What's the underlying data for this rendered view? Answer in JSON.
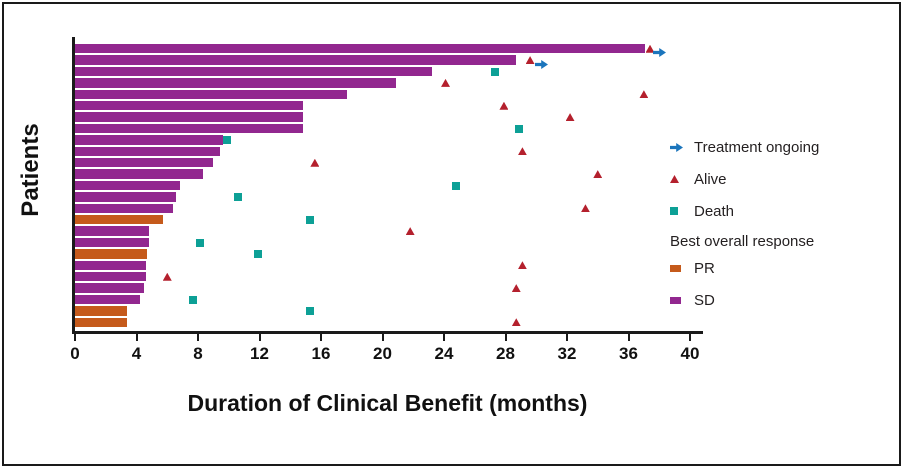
{
  "colors": {
    "sd": "#92278F",
    "pr": "#C55A1B",
    "death": "#0DA096",
    "alive": "#B4202D",
    "ongoing": "#1B75BC",
    "axis": "#1A1A1A",
    "text": "#231F20"
  },
  "chart_data": {
    "type": "bar",
    "variant": "swimmer-plot",
    "orientation": "horizontal",
    "title": "",
    "xlabel": "Duration of Clinical Benefit (months)",
    "ylabel": "Patients",
    "xlim": [
      0,
      40
    ],
    "xticks": [
      0,
      4,
      8,
      12,
      16,
      20,
      24,
      28,
      32,
      36,
      40
    ],
    "grid": false,
    "legend": {
      "position": "right",
      "items": [
        {
          "key": "ongoing",
          "label": "Treatment ongoing",
          "marker": "arrow-right",
          "color": "#1B75BC"
        },
        {
          "key": "alive",
          "label": "Alive",
          "marker": "triangle",
          "color": "#B4202D"
        },
        {
          "key": "death",
          "label": "Death",
          "marker": "square",
          "color": "#0DA096"
        }
      ],
      "response_header": "Best overall response",
      "response_items": [
        {
          "key": "PR",
          "label": "PR",
          "color": "#C55A1B"
        },
        {
          "key": "SD",
          "label": "SD",
          "color": "#92278F"
        }
      ]
    },
    "patients": [
      {
        "response": "SD",
        "duration": 37.1,
        "events": [
          {
            "type": "alive",
            "time": 37.4
          },
          {
            "type": "ongoing",
            "time": 38.0
          }
        ]
      },
      {
        "response": "SD",
        "duration": 28.7,
        "events": [
          {
            "type": "alive",
            "time": 29.6
          },
          {
            "type": "ongoing",
            "time": 30.3
          }
        ]
      },
      {
        "response": "SD",
        "duration": 23.2,
        "events": [
          {
            "type": "death",
            "time": 27.3
          }
        ]
      },
      {
        "response": "SD",
        "duration": 20.9,
        "events": [
          {
            "type": "alive",
            "time": 24.1
          }
        ]
      },
      {
        "response": "SD",
        "duration": 17.7,
        "events": [
          {
            "type": "alive",
            "time": 37.0
          }
        ]
      },
      {
        "response": "SD",
        "duration": 14.8,
        "events": [
          {
            "type": "alive",
            "time": 27.9
          }
        ]
      },
      {
        "response": "SD",
        "duration": 14.8,
        "events": [
          {
            "type": "alive",
            "time": 32.2
          }
        ]
      },
      {
        "response": "SD",
        "duration": 14.8,
        "events": [
          {
            "type": "death",
            "time": 28.9
          }
        ]
      },
      {
        "response": "SD",
        "duration": 9.6,
        "events": [
          {
            "type": "death",
            "time": 9.9
          }
        ]
      },
      {
        "response": "SD",
        "duration": 9.4,
        "events": [
          {
            "type": "alive",
            "time": 29.1
          }
        ]
      },
      {
        "response": "SD",
        "duration": 9.0,
        "events": [
          {
            "type": "alive",
            "time": 15.6
          }
        ]
      },
      {
        "response": "SD",
        "duration": 8.3,
        "events": [
          {
            "type": "alive",
            "time": 34.0
          }
        ]
      },
      {
        "response": "SD",
        "duration": 6.8,
        "events": [
          {
            "type": "death",
            "time": 24.8
          }
        ]
      },
      {
        "response": "SD",
        "duration": 6.6,
        "events": [
          {
            "type": "death",
            "time": 10.6
          }
        ]
      },
      {
        "response": "SD",
        "duration": 6.4,
        "events": [
          {
            "type": "alive",
            "time": 33.2
          }
        ]
      },
      {
        "response": "PR",
        "duration": 5.7,
        "events": [
          {
            "type": "death",
            "time": 15.3
          }
        ]
      },
      {
        "response": "SD",
        "duration": 4.8,
        "events": [
          {
            "type": "alive",
            "time": 21.8
          }
        ]
      },
      {
        "response": "SD",
        "duration": 4.8,
        "events": [
          {
            "type": "death",
            "time": 8.1
          }
        ]
      },
      {
        "response": "PR",
        "duration": 4.7,
        "events": [
          {
            "type": "death",
            "time": 11.9
          }
        ]
      },
      {
        "response": "SD",
        "duration": 4.6,
        "events": [
          {
            "type": "alive",
            "time": 29.1
          }
        ]
      },
      {
        "response": "SD",
        "duration": 4.6,
        "events": [
          {
            "type": "alive",
            "time": 6.0
          }
        ]
      },
      {
        "response": "SD",
        "duration": 4.5,
        "events": [
          {
            "type": "alive",
            "time": 28.7
          }
        ]
      },
      {
        "response": "SD",
        "duration": 4.2,
        "events": [
          {
            "type": "death",
            "time": 7.7
          }
        ]
      },
      {
        "response": "PR",
        "duration": 3.4,
        "events": [
          {
            "type": "death",
            "time": 15.3
          }
        ]
      },
      {
        "response": "PR",
        "duration": 3.4,
        "events": [
          {
            "type": "alive",
            "time": 28.7
          }
        ]
      }
    ]
  }
}
